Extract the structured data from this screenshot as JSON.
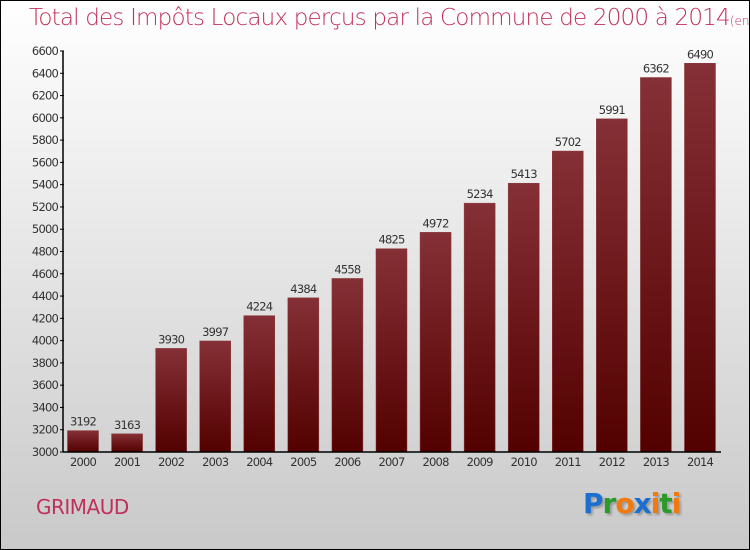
{
  "chart_data": {
    "type": "bar",
    "title": "Total des Impôts Locaux perçus par la Commune de 2000 à 2014",
    "subtitle": "(en milliers d'€)",
    "categories": [
      "2000",
      "2001",
      "2002",
      "2003",
      "2004",
      "2005",
      "2006",
      "2007",
      "2008",
      "2009",
      "2010",
      "2011",
      "2012",
      "2013",
      "2014"
    ],
    "values": [
      3192,
      3163,
      3930,
      3997,
      4224,
      4384,
      4558,
      4825,
      4972,
      5234,
      5413,
      5702,
      5991,
      6362,
      6490
    ],
    "ylim": [
      3000,
      6600
    ],
    "yticks": [
      "3000",
      "3200",
      "3400",
      "3600",
      "3800",
      "4000",
      "4200",
      "4400",
      "4600",
      "4800",
      "5000",
      "5200",
      "5400",
      "5600",
      "5800",
      "6000",
      "6200",
      "6400",
      "6600"
    ],
    "bar_color": "#6b0f12"
  },
  "commune": "GRIMAUD",
  "logo": "Proxiti"
}
